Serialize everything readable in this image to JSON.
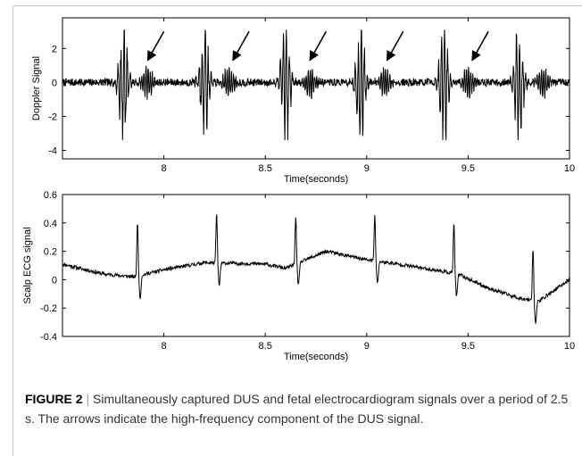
{
  "chart_data": [
    {
      "type": "line",
      "xlabel": "Time(seconds)",
      "ylabel": "Doppler Signal",
      "xlim": [
        7.5,
        10
      ],
      "ylim": [
        -4.5,
        3.8
      ],
      "xticks": [
        8,
        8.5,
        9,
        9.5,
        10
      ],
      "yticks": [
        2,
        0,
        -2,
        -4
      ],
      "xtick_labels": [
        "8",
        "8.5",
        "9",
        "9.5",
        "10"
      ],
      "ytick_labels": [
        "2",
        "0",
        "-2",
        "-4"
      ],
      "grid": false,
      "beat_times": [
        7.8,
        8.2,
        8.6,
        8.97,
        9.38,
        9.75
      ],
      "arrows": [
        {
          "tip": [
            7.92,
            1.3
          ],
          "tail": [
            8.0,
            3.0
          ]
        },
        {
          "tip": [
            8.34,
            1.3
          ],
          "tail": [
            8.42,
            3.0
          ]
        },
        {
          "tip": [
            8.72,
            1.3
          ],
          "tail": [
            8.8,
            3.0
          ]
        },
        {
          "tip": [
            9.1,
            1.3
          ],
          "tail": [
            9.18,
            3.0
          ]
        },
        {
          "tip": [
            9.52,
            1.3
          ],
          "tail": [
            9.6,
            3.0
          ]
        }
      ]
    },
    {
      "type": "line",
      "xlabel": "Time(seconds)",
      "ylabel": "Scalp ECG signal",
      "xlim": [
        7.5,
        10
      ],
      "ylim": [
        -0.4,
        0.6
      ],
      "xticks": [
        8,
        8.5,
        9,
        9.5,
        10
      ],
      "yticks": [
        0.6,
        0.4,
        0.2,
        0,
        -0.2,
        -0.4
      ],
      "xtick_labels": [
        "8",
        "8.5",
        "9",
        "9.5",
        "10"
      ],
      "ytick_labels": [
        "0.6",
        "0.4",
        "0.2",
        "0",
        "-0.2",
        "-0.4"
      ],
      "grid": false,
      "r_peaks": [
        {
          "t": 7.87,
          "peak": 0.41
        },
        {
          "t": 8.26,
          "peak": 0.47
        },
        {
          "t": 8.65,
          "peak": 0.45
        },
        {
          "t": 9.04,
          "peak": 0.45
        },
        {
          "t": 9.43,
          "peak": 0.4
        },
        {
          "t": 9.82,
          "peak": 0.22
        }
      ]
    }
  ],
  "caption": {
    "label": "FIGURE 2",
    "separator": "|",
    "text": "Simultaneously captured DUS and fetal electrocardiogram signals over a period of 2.5 s. The arrows indicate the high-frequency component of the DUS signal."
  }
}
